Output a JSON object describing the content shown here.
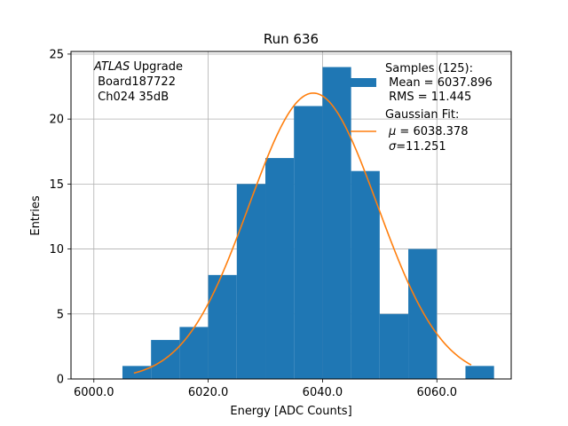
{
  "chart_data": {
    "type": "bar",
    "title": "Run 636",
    "xlabel": "Energy [ADC Counts]",
    "ylabel": "Entries",
    "xlim": [
      5996.0,
      6073.0
    ],
    "ylim": [
      0,
      25.2
    ],
    "xticks": [
      6000.0,
      6020.0,
      6040.0,
      6060.0
    ],
    "xtick_labels": [
      "6000.0",
      "6020.0",
      "6040.0",
      "6060.0"
    ],
    "yticks": [
      0,
      5,
      10,
      15,
      20,
      25
    ],
    "ytick_labels": [
      "0",
      "5",
      "10",
      "15",
      "20",
      "25"
    ],
    "grid": true,
    "bin_edges": [
      6005,
      6010,
      6015,
      6020,
      6025,
      6030,
      6035,
      6040,
      6045,
      6050,
      6055,
      6060,
      6065,
      6070
    ],
    "counts": [
      1,
      3,
      4,
      8,
      15,
      17,
      21,
      24,
      16,
      5,
      10,
      0,
      1
    ],
    "bar_color": "#1f77b4",
    "fit": {
      "name": "Gaussian Fit",
      "amplitude": 22.0,
      "mu": 6038.378,
      "sigma": 11.251,
      "x_range": [
        6007.0,
        6066.0
      ],
      "color": "#ff7f0e"
    },
    "annotation": {
      "italic": "ATLAS",
      "rest": " Upgrade",
      "line2": " Board187722",
      "line3": " Ch024 35dB"
    },
    "legend": {
      "position": "top-right",
      "samples_title": "Samples (125):",
      "samples_mean": " Mean = 6037.896",
      "samples_rms": " RMS = 11.445",
      "fit_title": "Gaussian Fit:",
      "fit_mu_symbol": "μ",
      "fit_mu_value": " = 6038.378",
      "fit_sigma_symbol": "σ",
      "fit_sigma_value": "=11.251"
    }
  }
}
